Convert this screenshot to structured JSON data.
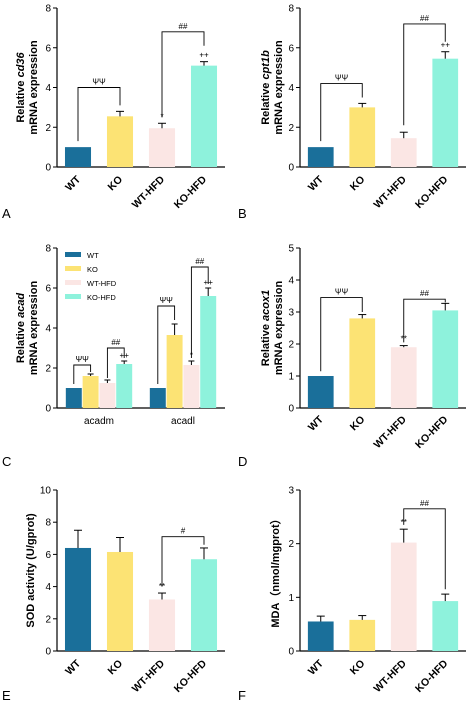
{
  "chart_data": [
    {
      "panel": "A",
      "type": "bar",
      "ylabel_lines": [
        "Relative ",
        "cd36",
        "mRNA expression"
      ],
      "ylim": [
        0,
        8
      ],
      "yticks": [
        0,
        2,
        4,
        6,
        8
      ],
      "categories": [
        "WT",
        "KO",
        "WT-HFD",
        "KO-HFD"
      ],
      "values": [
        1.0,
        2.55,
        1.95,
        5.1
      ],
      "errors": [
        0,
        0.25,
        0.25,
        0.2
      ],
      "colors": [
        "#1a6f9a",
        "#fce374",
        "#fbe6e4",
        "#8ef2dc"
      ],
      "markers": [
        "",
        "",
        "*",
        "++"
      ],
      "brackets": [
        {
          "from": 0,
          "to": 1,
          "label": "ΨΨ",
          "y": 4.0,
          "left_drop": 1.3,
          "right_drop": 3.1
        },
        {
          "from": 2,
          "to": 3,
          "label": "##",
          "y": 6.8,
          "left_drop": 2.5,
          "right_drop": 6.1
        }
      ]
    },
    {
      "panel": "B",
      "type": "bar",
      "ylabel_lines": [
        "Relative ",
        "cpt1b",
        "mRNA expression"
      ],
      "ylim": [
        0,
        8
      ],
      "yticks": [
        0,
        2,
        4,
        6,
        8
      ],
      "categories": [
        "WT",
        "KO",
        "WT-HFD",
        "KO-HFD"
      ],
      "values": [
        1.0,
        3.0,
        1.45,
        5.45
      ],
      "errors": [
        0,
        0.2,
        0.3,
        0.35
      ],
      "colors": [
        "#1a6f9a",
        "#fce374",
        "#fbe6e4",
        "#8ef2dc"
      ],
      "markers": [
        "",
        "",
        "",
        "++"
      ],
      "brackets": [
        {
          "from": 0,
          "to": 1,
          "label": "ΨΨ",
          "y": 4.2,
          "left_drop": 1.3,
          "right_drop": 3.5
        },
        {
          "from": 2,
          "to": 3,
          "label": "##",
          "y": 7.2,
          "left_drop": 2.1,
          "right_drop": 6.3
        }
      ]
    },
    {
      "panel": "C",
      "type": "grouped-bar",
      "ylabel_lines": [
        "Relative ",
        "acad",
        "mRNA expression"
      ],
      "ylim": [
        0,
        8
      ],
      "yticks": [
        0,
        2,
        4,
        6,
        8
      ],
      "categories": [
        "acadm",
        "acadl"
      ],
      "series": [
        {
          "name": "WT",
          "values": [
            1.0,
            1.0
          ],
          "errors": [
            0,
            0
          ],
          "color": "#1a6f9a",
          "markers": [
            "",
            ""
          ]
        },
        {
          "name": "KO",
          "values": [
            1.6,
            3.65
          ],
          "errors": [
            0.1,
            0.55
          ],
          "color": "#fce374",
          "markers": [
            "",
            ""
          ]
        },
        {
          "name": "WT-HFD",
          "values": [
            1.25,
            2.15
          ],
          "errors": [
            0.15,
            0.2
          ],
          "color": "#fbe6e4",
          "markers": [
            "",
            "*"
          ]
        },
        {
          "name": "KO-HFD",
          "values": [
            2.2,
            5.6
          ],
          "errors": [
            0.15,
            0.4
          ],
          "color": "#8ef2dc",
          "markers": [
            "++",
            "++"
          ]
        }
      ],
      "brackets": [
        {
          "group": 0,
          "from": 0,
          "to": 1,
          "label": "ΨΨ",
          "y": 2.15,
          "left_drop": 1.2,
          "right_drop": 1.8
        },
        {
          "group": 0,
          "from": 2,
          "to": 3,
          "label": "##",
          "y": 3.0,
          "left_drop": 1.5,
          "right_drop": 2.5
        },
        {
          "group": 1,
          "from": 0,
          "to": 1,
          "label": "ΨΨ",
          "y": 5.1,
          "left_drop": 1.2,
          "right_drop": 4.4
        },
        {
          "group": 1,
          "from": 2,
          "to": 3,
          "label": "##",
          "y": 7.05,
          "left_drop": 2.5,
          "right_drop": 6.2
        }
      ],
      "legend_position": "top-left"
    },
    {
      "panel": "D",
      "type": "bar",
      "ylabel_lines": [
        "Relative ",
        "acox1",
        "mRNA expression"
      ],
      "ylim": [
        0,
        5
      ],
      "yticks": [
        0,
        1,
        2,
        3,
        4,
        5
      ],
      "categories": [
        "WT",
        "KO",
        "WT-HFD",
        "KO-HFD"
      ],
      "values": [
        1.0,
        2.8,
        1.9,
        3.05
      ],
      "errors": [
        0,
        0.12,
        0.05,
        0.22
      ],
      "colors": [
        "#1a6f9a",
        "#fce374",
        "#fbe6e4",
        "#8ef2dc"
      ],
      "markers": [
        "",
        "",
        "**",
        ""
      ],
      "brackets": [
        {
          "from": 0,
          "to": 1,
          "label": "ΨΨ",
          "y": 3.45,
          "left_drop": 1.15,
          "right_drop": 3.0
        },
        {
          "from": 2,
          "to": 3,
          "label": "##",
          "y": 3.4,
          "left_drop": 2.05,
          "right_drop": 3.3
        }
      ]
    },
    {
      "panel": "E",
      "type": "bar",
      "ylabel_lines": [
        "SOD activity (U/gprot)"
      ],
      "ylim": [
        0,
        10
      ],
      "yticks": [
        0,
        2,
        4,
        6,
        8,
        10
      ],
      "categories": [
        "WT",
        "KO",
        "WT-HFD",
        "KO-HFD"
      ],
      "values": [
        6.4,
        6.15,
        3.2,
        5.7
      ],
      "errors": [
        1.1,
        0.9,
        0.4,
        0.7
      ],
      "colors": [
        "#1a6f9a",
        "#fce374",
        "#fbe6e4",
        "#8ef2dc"
      ],
      "markers": [
        "",
        "",
        "**",
        ""
      ],
      "brackets": [
        {
          "from": 2,
          "to": 3,
          "label": "#",
          "y": 7.1,
          "left_drop": 4.0,
          "right_drop": 6.6
        }
      ]
    },
    {
      "panel": "F",
      "type": "bar",
      "ylabel_lines": [
        "MDA（nmol/mgprot）"
      ],
      "ylim": [
        0,
        3
      ],
      "yticks": [
        0,
        1,
        2,
        3
      ],
      "categories": [
        "WT",
        "KO",
        "WT-HFD",
        "KO-HFD"
      ],
      "values": [
        0.55,
        0.58,
        2.02,
        0.93
      ],
      "errors": [
        0.1,
        0.08,
        0.25,
        0.13
      ],
      "colors": [
        "#1a6f9a",
        "#fce374",
        "#fbe6e4",
        "#8ef2dc"
      ],
      "markers": [
        "",
        "",
        "**",
        ""
      ],
      "brackets": [
        {
          "from": 2,
          "to": 3,
          "label": "##",
          "y": 2.65,
          "left_drop": 2.35,
          "right_drop": 1.15
        }
      ]
    }
  ]
}
